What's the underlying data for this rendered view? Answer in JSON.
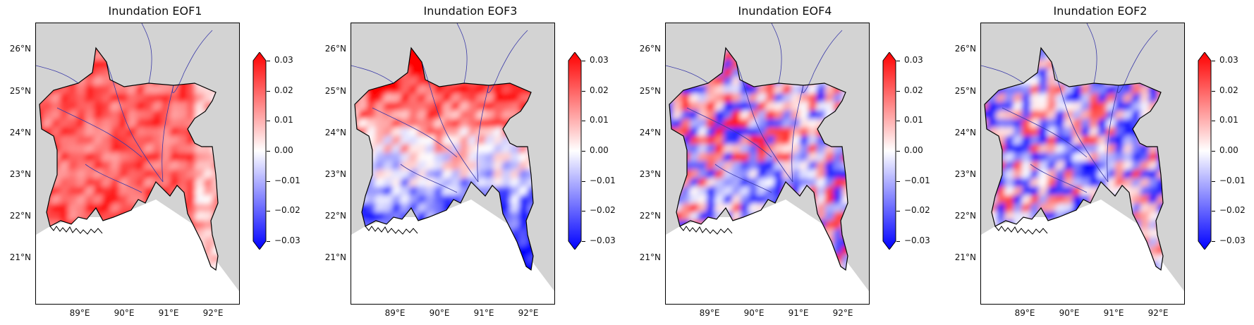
{
  "panels": [
    {
      "title": "Inundation EOF1",
      "pattern": "positive"
    },
    {
      "title": "Inundation EOF3",
      "pattern": "north-positive-south-negative"
    },
    {
      "title": "Inundation EOF4",
      "pattern": "mixed"
    },
    {
      "title": "Inundation EOF2",
      "pattern": "mixed-negative"
    }
  ],
  "lat_ticks": [
    "26°N",
    "25°N",
    "24°N",
    "23°N",
    "22°N",
    "21°N"
  ],
  "lon_ticks": [
    "89°E",
    "90°E",
    "91°E",
    "92°E"
  ],
  "colorbar_ticks": [
    "0.03",
    "0.02",
    "0.01",
    "0.00",
    "−0.01",
    "−0.02",
    "−0.03"
  ],
  "colors": {
    "positive": "#ff0000",
    "negative": "#0000ff",
    "zero": "#ffffff",
    "land_mask": "#d3d3d3",
    "rivers": "#3a3aa8"
  }
}
